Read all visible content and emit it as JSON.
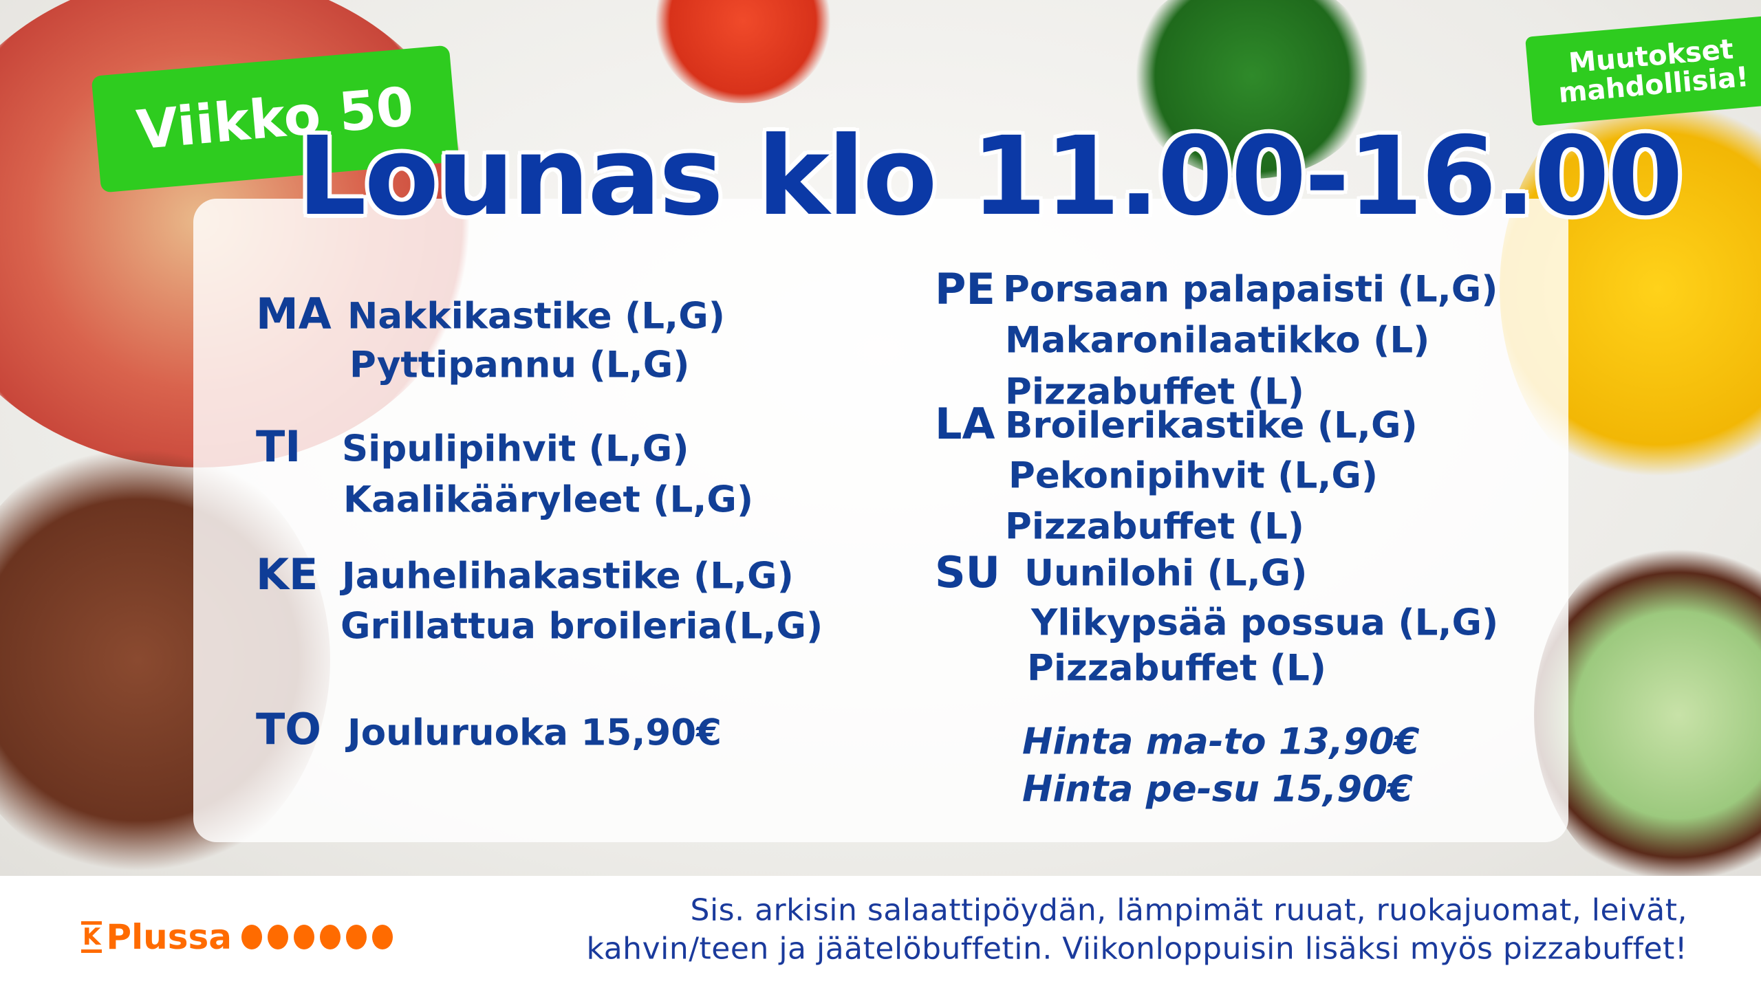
{
  "header": {
    "week_badge": "Viikko 50",
    "title": "Lounas klo 11.00-16.00",
    "notice_badge_line1": "Muutokset",
    "notice_badge_line2": "mahdollisia!"
  },
  "menu_left": [
    {
      "day": "MA",
      "items": [
        "Nakkikastike (L,G)",
        "Pyttipannu (L,G)"
      ]
    },
    {
      "day": "TI",
      "items": [
        "Sipulipihvit (L,G)",
        "Kaalikääryleet (L,G)"
      ]
    },
    {
      "day": "KE",
      "items": [
        "Jauhelihakastike (L,G)",
        "Grillattua broileria(L,G)"
      ]
    },
    {
      "day": "TO",
      "items": [
        "Jouluruoka 15,90€"
      ]
    }
  ],
  "menu_right": [
    {
      "day": "PE",
      "items": [
        "Porsaan palapaisti (L,G)",
        "Makaronilaatikko (L)",
        "Pizzabuffet (L)"
      ]
    },
    {
      "day": "LA",
      "items": [
        "Broilerikastike (L,G)",
        "Pekonipihvit (L,G)",
        "Pizzabuffet (L)"
      ]
    },
    {
      "day": "SU",
      "items": [
        "Uunilohi (L,G)",
        "Ylikypsää possua (L,G)",
        "Pizzabuffet (L)"
      ]
    }
  ],
  "prices": [
    "Hinta ma-to 13,90€",
    "Hinta pe-su 15,90€"
  ],
  "footer": {
    "logo_text": "Plussa",
    "logo_letter": "K",
    "line1": "Sis. arkisin salaattipöydän, lämpimät ruuat, ruokajuomat, leivät,",
    "line2": "kahvin/teen ja jäätelöbuffetin. Viikonloppuisin lisäksi myös pizzabuffet!"
  },
  "colors": {
    "text_blue": "#123f96",
    "title_blue": "#0b39a6",
    "badge_green": "#2ecc1f",
    "plussa_orange": "#ff6b00"
  }
}
